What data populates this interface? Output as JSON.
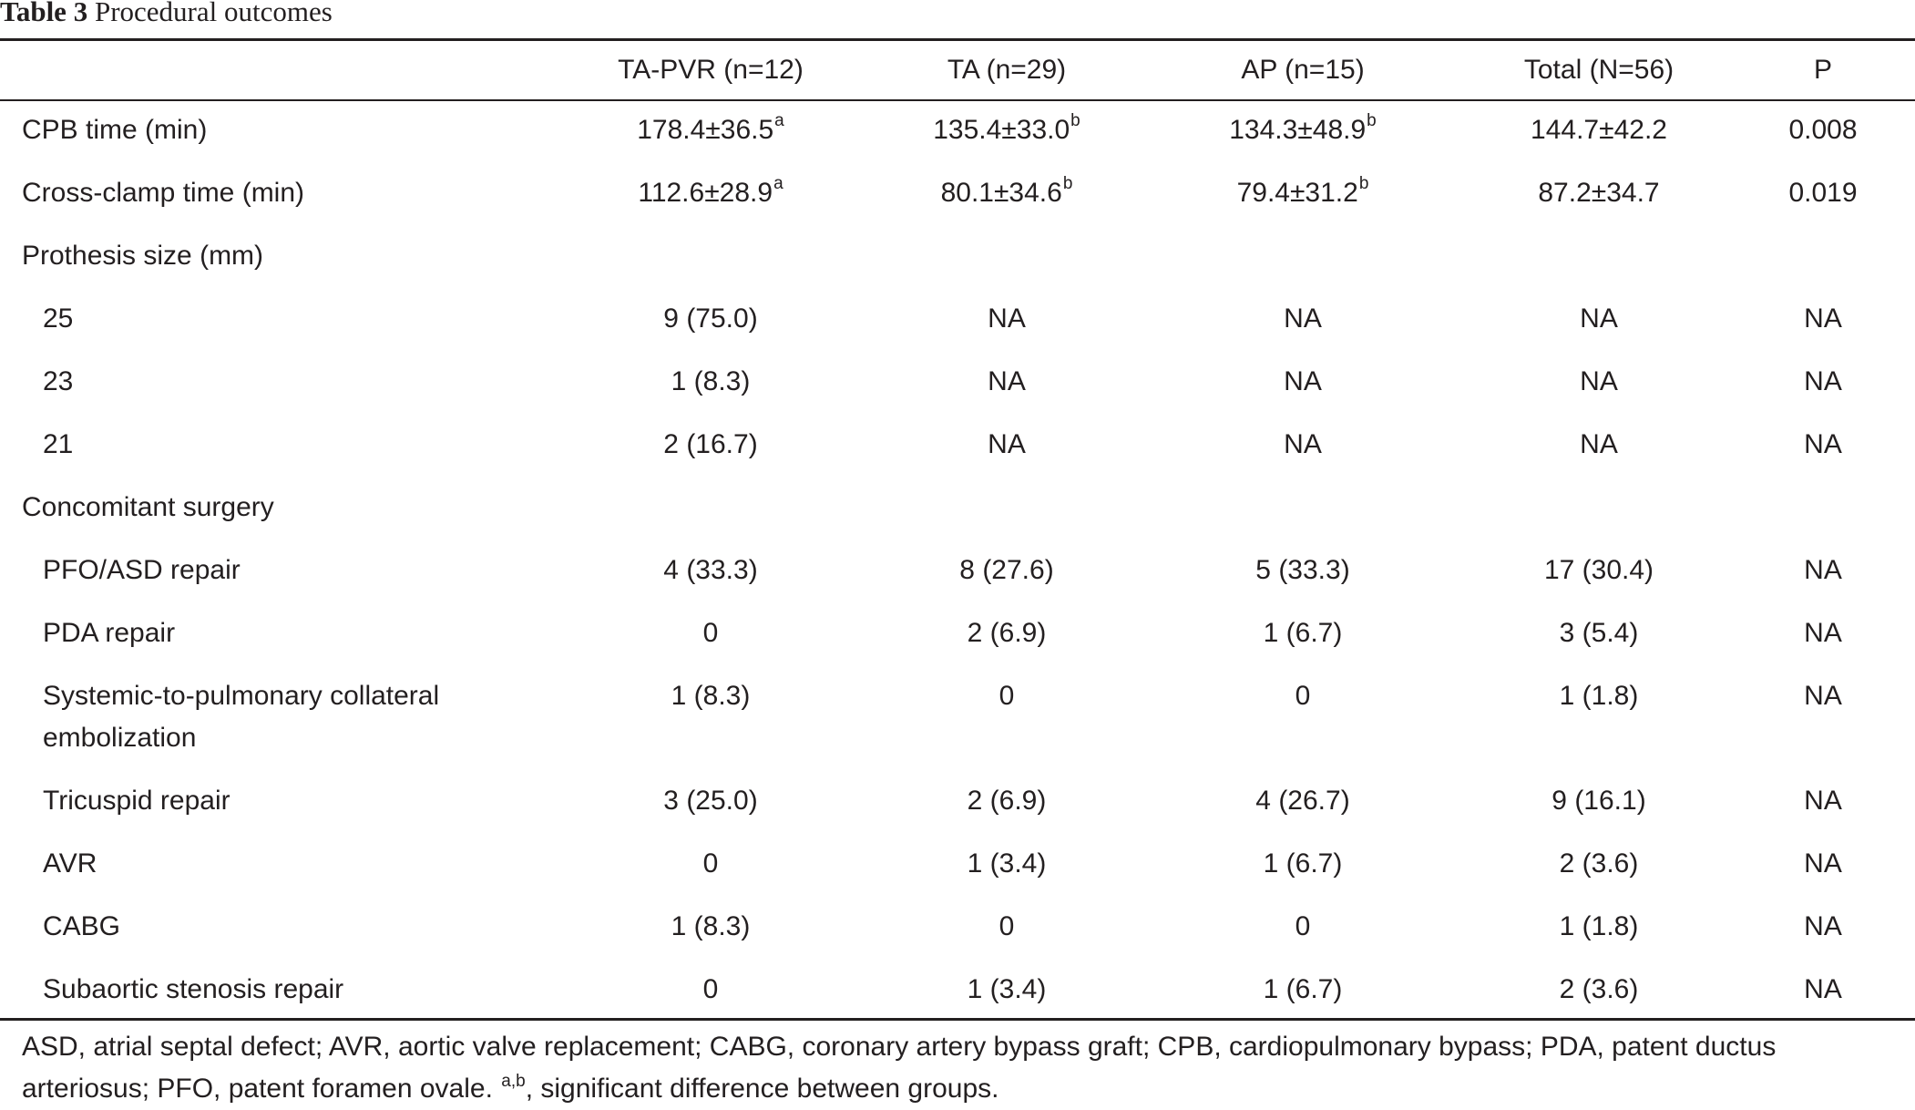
{
  "caption": {
    "label": "Table 3",
    "title": "Procedural outcomes"
  },
  "columns": [
    "",
    "TA-PVR (n=12)",
    "TA (n=29)",
    "AP (n=15)",
    "Total (N=56)",
    "P"
  ],
  "rows": [
    {
      "label": "CPB time (min)",
      "indent": false,
      "cells": [
        "178.4±36.5",
        "135.4±33.0",
        "134.3±48.9",
        "144.7±42.2",
        "0.008"
      ],
      "sups": [
        "a",
        "b",
        "b",
        "",
        ""
      ]
    },
    {
      "label": "Cross-clamp time (min)",
      "indent": false,
      "cells": [
        "112.6±28.9",
        "80.1±34.6",
        "79.4±31.2",
        "87.2±34.7",
        "0.019"
      ],
      "sups": [
        "a",
        "b",
        "b",
        "",
        ""
      ]
    },
    {
      "label": "Prothesis size (mm)",
      "indent": false,
      "cells": [
        "",
        "",
        "",
        "",
        ""
      ],
      "sups": [
        "",
        "",
        "",
        "",
        ""
      ]
    },
    {
      "label": "25",
      "indent": true,
      "cells": [
        "9 (75.0)",
        "NA",
        "NA",
        "NA",
        "NA"
      ],
      "sups": [
        "",
        "",
        "",
        "",
        ""
      ]
    },
    {
      "label": "23",
      "indent": true,
      "cells": [
        "1 (8.3)",
        "NA",
        "NA",
        "NA",
        "NA"
      ],
      "sups": [
        "",
        "",
        "",
        "",
        ""
      ]
    },
    {
      "label": "21",
      "indent": true,
      "cells": [
        "2 (16.7)",
        "NA",
        "NA",
        "NA",
        "NA"
      ],
      "sups": [
        "",
        "",
        "",
        "",
        ""
      ]
    },
    {
      "label": "Concomitant surgery",
      "indent": false,
      "cells": [
        "",
        "",
        "",
        "",
        ""
      ],
      "sups": [
        "",
        "",
        "",
        "",
        ""
      ]
    },
    {
      "label": "PFO/ASD repair",
      "indent": true,
      "cells": [
        "4 (33.3)",
        "8 (27.6)",
        "5 (33.3)",
        "17 (30.4)",
        "NA"
      ],
      "sups": [
        "",
        "",
        "",
        "",
        ""
      ]
    },
    {
      "label": "PDA repair",
      "indent": true,
      "cells": [
        "0",
        "2 (6.9)",
        "1 (6.7)",
        "3 (5.4)",
        "NA"
      ],
      "sups": [
        "",
        "",
        "",
        "",
        ""
      ]
    },
    {
      "label": "Systemic-to-pulmonary collateral embolization",
      "indent": true,
      "tall": true,
      "cells": [
        "1 (8.3)",
        "0",
        "0",
        "1 (1.8)",
        "NA"
      ],
      "sups": [
        "",
        "",
        "",
        "",
        ""
      ]
    },
    {
      "label": "Tricuspid repair",
      "indent": true,
      "cells": [
        "3 (25.0)",
        "2 (6.9)",
        "4 (26.7)",
        "9 (16.1)",
        "NA"
      ],
      "sups": [
        "",
        "",
        "",
        "",
        ""
      ]
    },
    {
      "label": "AVR",
      "indent": true,
      "cells": [
        "0",
        "1 (3.4)",
        "1 (6.7)",
        "2 (3.6)",
        "NA"
      ],
      "sups": [
        "",
        "",
        "",
        "",
        ""
      ]
    },
    {
      "label": "CABG",
      "indent": true,
      "cells": [
        "1 (8.3)",
        "0",
        "0",
        "1 (1.8)",
        "NA"
      ],
      "sups": [
        "",
        "",
        "",
        "",
        ""
      ]
    },
    {
      "label": "Subaortic stenosis repair",
      "indent": true,
      "cells": [
        "0",
        "1 (3.4)",
        "1 (6.7)",
        "2 (3.6)",
        "NA"
      ],
      "sups": [
        "",
        "",
        "",
        "",
        ""
      ]
    }
  ],
  "footnote": {
    "text": "ASD, atrial septal defect; AVR, aortic valve replacement; CABG, coronary artery bypass graft; CPB, cardiopulmonary bypass; PDA, patent ductus arteriosus; PFO, patent foramen ovale.",
    "sup": "a,b",
    "tail": ", significant difference between groups."
  }
}
